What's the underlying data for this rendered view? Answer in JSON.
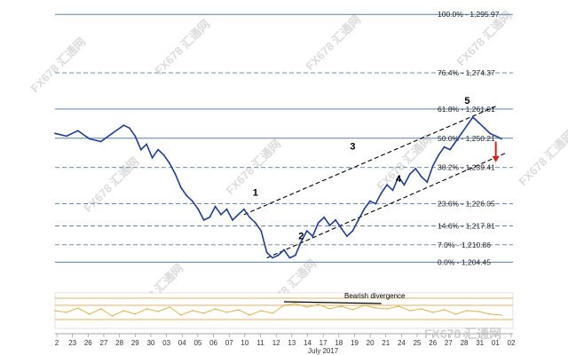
{
  "chart_data": {
    "type": "line",
    "fib_levels": [
      {
        "pct": "100.0%",
        "value": 1295.97,
        "label": "100.0% - 1,295.97"
      },
      {
        "pct": "76.4%",
        "value": 1274.37,
        "label": "76.4% - 1,274.37"
      },
      {
        "pct": "61.8%",
        "value": 1261.01,
        "label": "61.8% - 1,261.01"
      },
      {
        "pct": "50.0%",
        "value": 1250.21,
        "label": "50.0% - 1,250.21"
      },
      {
        "pct": "38.2%",
        "value": 1239.41,
        "label": "38.2% - 1,239.41"
      },
      {
        "pct": "23.6%",
        "value": 1226.05,
        "label": "23.6% - 1,226.05"
      },
      {
        "pct": "14.6%",
        "value": 1217.81,
        "label": "14.6% - 1,217.81"
      },
      {
        "pct": "7.0%",
        "value": 1210.86,
        "label": "7.0% - 1,210.86"
      },
      {
        "pct": "0.0%",
        "value": 1204.45,
        "label": "0.0% - 1,204.45"
      }
    ],
    "x_ticks": [
      "2",
      "23",
      "26",
      "27",
      "28",
      "29",
      "30",
      "03",
      "04",
      "05",
      "06",
      "07",
      "10",
      "11",
      "12",
      "13",
      "14",
      "17",
      "18",
      "19",
      "20",
      "21",
      "24",
      "25",
      "26",
      "27",
      "28",
      "31",
      "01",
      "02"
    ],
    "x_month_label": "July 2017",
    "series": [
      {
        "values": [
          [
            0,
            1252
          ],
          [
            2,
            1251
          ],
          [
            4,
            1253
          ],
          [
            6,
            1250
          ],
          [
            8,
            1249
          ],
          [
            10,
            1252
          ],
          [
            12,
            1255
          ],
          [
            13,
            1254
          ],
          [
            14,
            1251
          ],
          [
            15,
            1246
          ],
          [
            16,
            1248
          ],
          [
            17,
            1243
          ],
          [
            18,
            1246
          ],
          [
            19,
            1244
          ],
          [
            20,
            1241
          ],
          [
            21,
            1237
          ],
          [
            22,
            1232
          ],
          [
            23,
            1229
          ],
          [
            24,
            1227
          ],
          [
            25,
            1224
          ],
          [
            26,
            1220
          ],
          [
            27,
            1221
          ],
          [
            28,
            1225
          ],
          [
            29,
            1222
          ],
          [
            30,
            1224
          ],
          [
            31,
            1220
          ],
          [
            32,
            1222
          ],
          [
            33,
            1224
          ],
          [
            34,
            1221
          ],
          [
            35,
            1219
          ],
          [
            36,
            1216
          ],
          [
            37,
            1208
          ],
          [
            38,
            1206
          ],
          [
            39,
            1207
          ],
          [
            40,
            1209
          ],
          [
            41,
            1206
          ],
          [
            42,
            1207
          ],
          [
            43,
            1212
          ],
          [
            44,
            1216
          ],
          [
            45,
            1214
          ],
          [
            46,
            1219
          ],
          [
            47,
            1221
          ],
          [
            48,
            1218
          ],
          [
            49,
            1220
          ],
          [
            50,
            1217
          ],
          [
            51,
            1214
          ],
          [
            52,
            1216
          ],
          [
            53,
            1220
          ],
          [
            54,
            1224
          ],
          [
            55,
            1227
          ],
          [
            56,
            1226
          ],
          [
            57,
            1230
          ],
          [
            58,
            1233
          ],
          [
            59,
            1231
          ],
          [
            60,
            1236
          ],
          [
            61,
            1233
          ],
          [
            62,
            1237
          ],
          [
            63,
            1239
          ],
          [
            64,
            1236
          ],
          [
            65,
            1234
          ],
          [
            66,
            1240
          ],
          [
            67,
            1244
          ],
          [
            68,
            1247
          ],
          [
            69,
            1246
          ],
          [
            70,
            1249
          ],
          [
            71,
            1252
          ],
          [
            72,
            1255
          ],
          [
            73,
            1258
          ],
          [
            74,
            1256
          ],
          [
            75,
            1254
          ],
          [
            76,
            1252
          ],
          [
            77,
            1251
          ],
          [
            78,
            1250
          ]
        ]
      }
    ],
    "wave_labels": [
      {
        "label": "1",
        "x": 35,
        "y": 1229
      },
      {
        "label": "2",
        "x": 43,
        "y": 1213
      },
      {
        "label": "3",
        "x": 52,
        "y": 1246
      },
      {
        "label": "4",
        "x": 60,
        "y": 1234
      },
      {
        "label": "5",
        "x": 72,
        "y": 1263
      }
    ],
    "arrow": {
      "x": 77,
      "from": 1249,
      "to": 1242
    },
    "channel": {
      "upper": [
        [
          33,
          1222
        ],
        [
          77,
          1262
        ]
      ],
      "lower": [
        [
          37,
          1206
        ],
        [
          79,
          1245
        ]
      ]
    },
    "indicator": {
      "annotation": "Bearish divergence",
      "line": [
        [
          40,
          60
        ],
        [
          57,
          58
        ]
      ],
      "values": [
        [
          0,
          50
        ],
        [
          2,
          48
        ],
        [
          4,
          53
        ],
        [
          6,
          46
        ],
        [
          8,
          52
        ],
        [
          10,
          44
        ],
        [
          12,
          50
        ],
        [
          14,
          46
        ],
        [
          16,
          52
        ],
        [
          18,
          49
        ],
        [
          20,
          54
        ],
        [
          22,
          45
        ],
        [
          24,
          50
        ],
        [
          26,
          47
        ],
        [
          28,
          52
        ],
        [
          30,
          48
        ],
        [
          32,
          51
        ],
        [
          34,
          45
        ],
        [
          36,
          50
        ],
        [
          38,
          47
        ],
        [
          40,
          56
        ],
        [
          42,
          58
        ],
        [
          44,
          54
        ],
        [
          46,
          57
        ],
        [
          48,
          52
        ],
        [
          50,
          55
        ],
        [
          52,
          51
        ],
        [
          54,
          56
        ],
        [
          56,
          53
        ],
        [
          58,
          52
        ],
        [
          60,
          55
        ],
        [
          62,
          50
        ],
        [
          64,
          52
        ],
        [
          66,
          48
        ],
        [
          68,
          51
        ],
        [
          70,
          46
        ],
        [
          72,
          50
        ],
        [
          74,
          49
        ],
        [
          76,
          46
        ],
        [
          78,
          45
        ]
      ]
    },
    "x_range": [
      0,
      80
    ],
    "y_range": [
      1199,
      1298
    ]
  },
  "watermark": "FX678 汇通网",
  "logo": "FX678 汇通网"
}
